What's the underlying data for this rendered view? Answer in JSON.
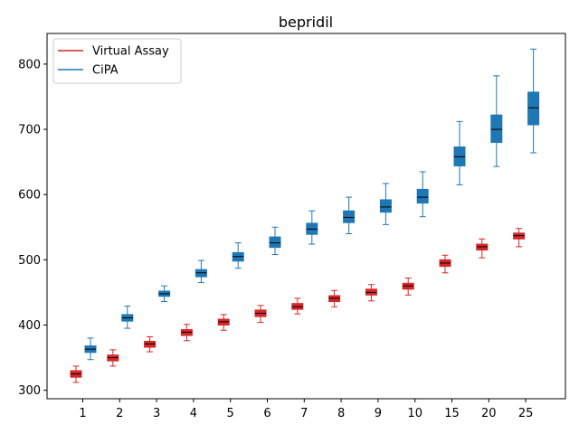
{
  "chart_data": {
    "type": "box",
    "title": "bepridil",
    "xlabel": "",
    "ylabel": "",
    "categories": [
      "1",
      "2",
      "3",
      "4",
      "5",
      "6",
      "7",
      "8",
      "9",
      "10",
      "15",
      "20",
      "25"
    ],
    "ylim": [
      287,
      847
    ],
    "yticks": [
      300,
      400,
      500,
      600,
      700,
      800
    ],
    "legend_position": "top-left",
    "series": [
      {
        "name": "Virtual Assay",
        "color": "#d62728",
        "median_color": "#000000",
        "boxes": [
          {
            "whislo": 312,
            "q1": 320,
            "med": 325,
            "q3": 330,
            "whishi": 337
          },
          {
            "whislo": 337,
            "q1": 345,
            "med": 350,
            "q3": 354,
            "whishi": 362
          },
          {
            "whislo": 359,
            "q1": 366,
            "med": 371,
            "q3": 375,
            "whishi": 382
          },
          {
            "whislo": 376,
            "q1": 384,
            "med": 389,
            "q3": 393,
            "whishi": 401
          },
          {
            "whislo": 392,
            "q1": 400,
            "med": 405,
            "q3": 409,
            "whishi": 416
          },
          {
            "whislo": 404,
            "q1": 413,
            "med": 418,
            "q3": 423,
            "whishi": 430
          },
          {
            "whislo": 417,
            "q1": 424,
            "med": 428,
            "q3": 433,
            "whishi": 441
          },
          {
            "whislo": 428,
            "q1": 436,
            "med": 441,
            "q3": 445,
            "whishi": 453
          },
          {
            "whislo": 437,
            "q1": 446,
            "med": 450,
            "q3": 455,
            "whishi": 462
          },
          {
            "whislo": 446,
            "q1": 455,
            "med": 460,
            "q3": 464,
            "whishi": 472
          },
          {
            "whislo": 480,
            "q1": 490,
            "med": 495,
            "q3": 500,
            "whishi": 507
          },
          {
            "whislo": 503,
            "q1": 515,
            "med": 520,
            "q3": 524,
            "whishi": 532
          },
          {
            "whislo": 520,
            "q1": 532,
            "med": 537,
            "q3": 541,
            "whishi": 548
          }
        ]
      },
      {
        "name": "CiPA",
        "color": "#1f77b4",
        "median_color": "#000000",
        "boxes": [
          {
            "whislo": 347,
            "q1": 358,
            "med": 363,
            "q3": 368,
            "whishi": 380
          },
          {
            "whislo": 395,
            "q1": 406,
            "med": 411,
            "q3": 416,
            "whishi": 429
          },
          {
            "whislo": 436,
            "q1": 444,
            "med": 448,
            "q3": 452,
            "whishi": 460
          },
          {
            "whislo": 465,
            "q1": 474,
            "med": 480,
            "q3": 485,
            "whishi": 499
          },
          {
            "whislo": 487,
            "q1": 498,
            "med": 505,
            "q3": 511,
            "whishi": 526
          },
          {
            "whislo": 508,
            "q1": 519,
            "med": 526,
            "q3": 535,
            "whishi": 550
          },
          {
            "whislo": 524,
            "q1": 539,
            "med": 547,
            "q3": 556,
            "whishi": 575
          },
          {
            "whislo": 540,
            "q1": 557,
            "med": 565,
            "q3": 575,
            "whishi": 596
          },
          {
            "whislo": 554,
            "q1": 573,
            "med": 581,
            "q3": 592,
            "whishi": 617
          },
          {
            "whislo": 566,
            "q1": 587,
            "med": 596,
            "q3": 608,
            "whishi": 635
          },
          {
            "whislo": 615,
            "q1": 644,
            "med": 658,
            "q3": 673,
            "whishi": 712
          },
          {
            "whislo": 643,
            "q1": 680,
            "med": 700,
            "q3": 722,
            "whishi": 782
          },
          {
            "whislo": 664,
            "q1": 707,
            "med": 733,
            "q3": 757,
            "whishi": 823
          }
        ]
      }
    ]
  }
}
